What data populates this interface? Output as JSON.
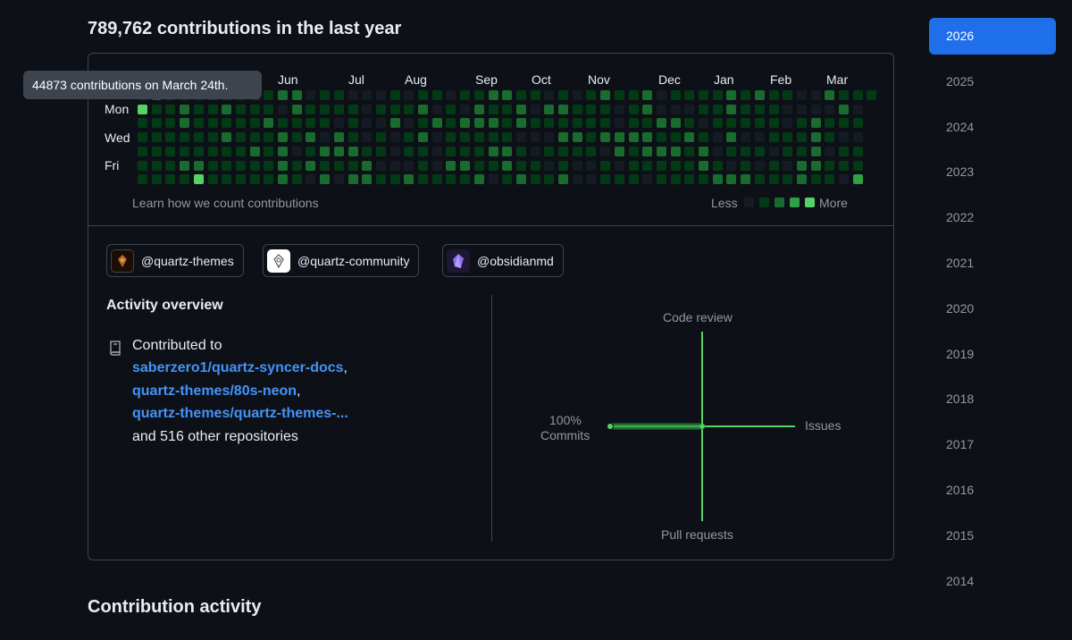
{
  "summary": "789,762 contributions in the last year",
  "tooltip": "44873 contributions on March 24th.",
  "months": [
    "Jun",
    "Jul",
    "Aug",
    "Sep",
    "Oct",
    "Nov",
    "Dec",
    "Jan",
    "Feb",
    "Mar"
  ],
  "days": [
    "Mon",
    "Wed",
    "Fri"
  ],
  "calendar_footer": {
    "learn_link": "Learn how we count contributions",
    "less": "Less",
    "more": "More"
  },
  "colors": {
    "level0": "#151b23",
    "level1": "#033a16",
    "level2": "#196c2e",
    "level3": "#2ea043",
    "level4": "#56d364",
    "accent": "#4493f8",
    "selected_year": "#1f6feb"
  },
  "orgs": [
    {
      "handle": "@quartz-themes",
      "icon": "quartz-themes-avatar-icon"
    },
    {
      "handle": "@quartz-community",
      "icon": "quartz-community-avatar-icon"
    },
    {
      "handle": "@obsidianmd",
      "icon": "obsidian-avatar-icon"
    }
  ],
  "activity": {
    "title": "Activity overview",
    "contributed_to": "Contributed to",
    "repos": [
      "saberzero1/quartz-syncer-docs",
      "quartz-themes/80s-neon",
      "quartz-themes/quartz-themes-..."
    ],
    "other": "and 516 other repositories"
  },
  "overview_chart": {
    "code_review": "Code review",
    "issues": "Issues",
    "pull_requests": "Pull requests",
    "commits_pct": "100%",
    "commits": "Commits"
  },
  "bottom_heading": "Contribution activity",
  "years": [
    "2026",
    "2025",
    "2024",
    "2023",
    "2022",
    "2021",
    "2020",
    "2019",
    "2018",
    "2017",
    "2016",
    "2015",
    "2014"
  ],
  "selected_year": "2026"
}
